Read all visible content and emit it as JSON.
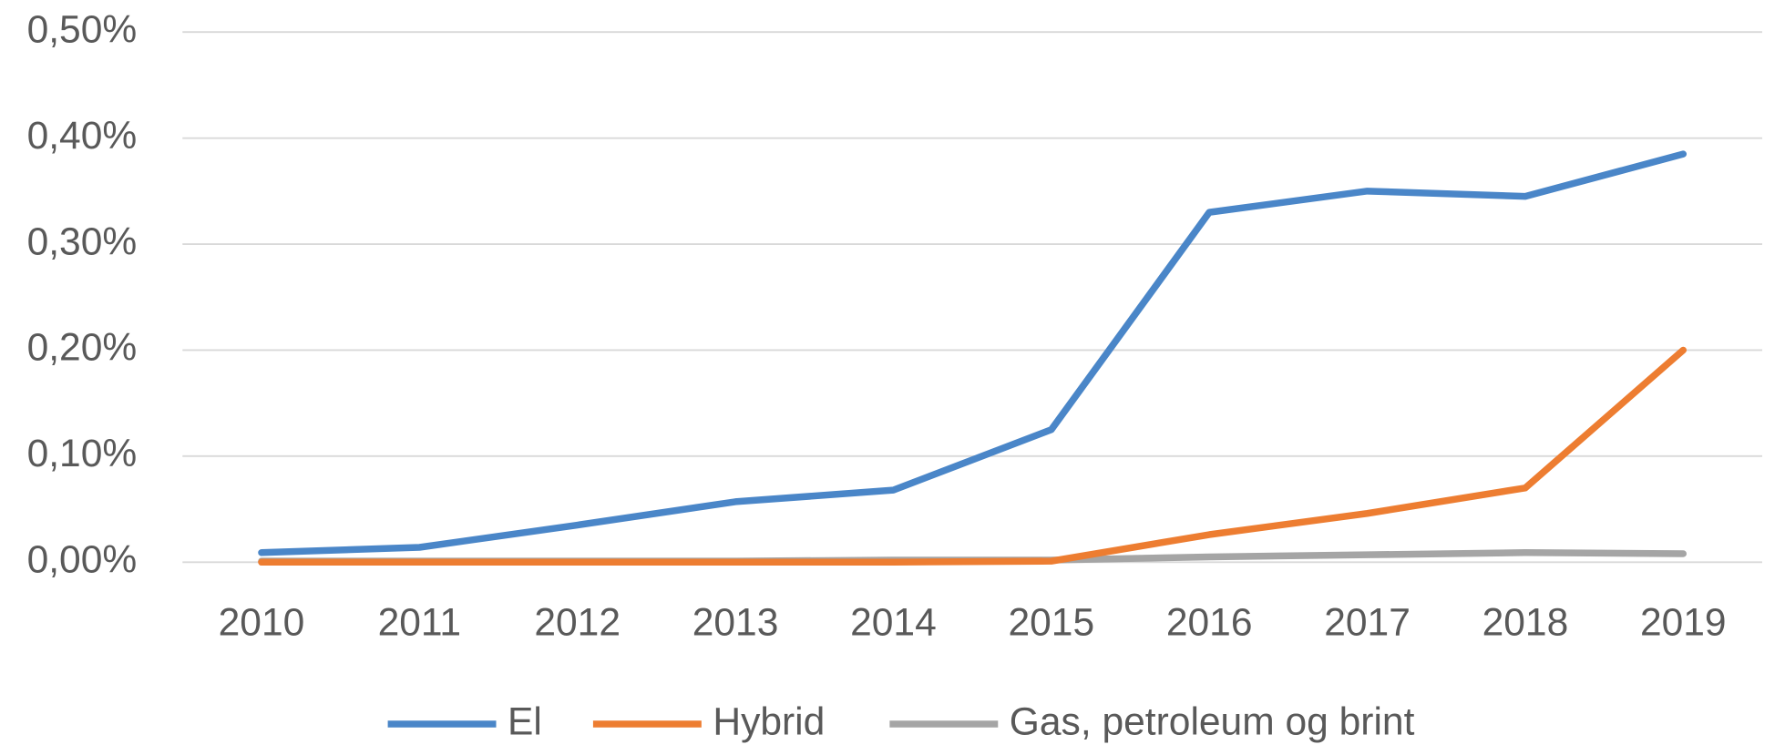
{
  "chart_data": {
    "type": "line",
    "categories": [
      "2010",
      "2011",
      "2012",
      "2013",
      "2014",
      "2015",
      "2016",
      "2017",
      "2018",
      "2019"
    ],
    "series": [
      {
        "name": "El",
        "color": "#4a86c8",
        "values": [
          0.009,
          0.014,
          0.035,
          0.057,
          0.068,
          0.125,
          0.33,
          0.35,
          0.345,
          0.385
        ]
      },
      {
        "name": "Hybrid",
        "color": "#ed7d31",
        "values": [
          0,
          0,
          0,
          0,
          0,
          0.001,
          0.026,
          0.046,
          0.07,
          0.2
        ]
      },
      {
        "name": "Gas, petroleum og brint",
        "color": "#a5a5a5",
        "values": [
          0.001,
          0.001,
          0.001,
          0.001,
          0.002,
          0.002,
          0.005,
          0.007,
          0.009,
          0.008
        ]
      }
    ],
    "ylim": [
      0,
      0.5
    ],
    "yticks": [
      {
        "value": 0,
        "label": "0,00%"
      },
      {
        "value": 0.1,
        "label": "0,10%"
      },
      {
        "value": 0.2,
        "label": "0,20%"
      },
      {
        "value": 0.3,
        "label": "0,30%"
      },
      {
        "value": 0.4,
        "label": "0,40%"
      },
      {
        "value": 0.5,
        "label": "0,50%"
      }
    ],
    "grid": true,
    "legend": "bottom"
  }
}
